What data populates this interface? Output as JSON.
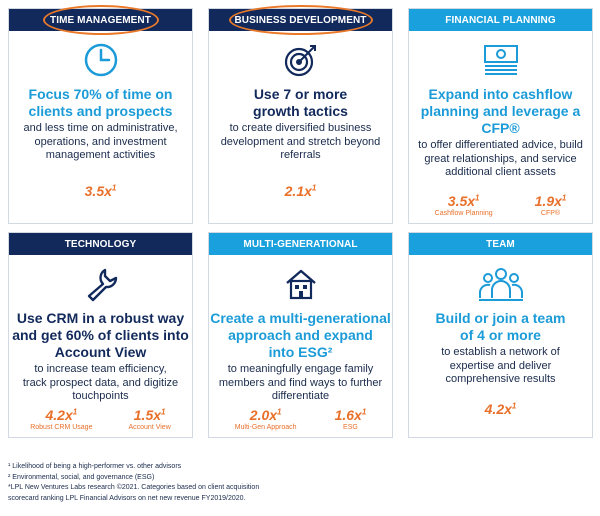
{
  "cards": [
    {
      "id": "time",
      "header": "TIME MANAGEMENT",
      "icon": "clock-icon",
      "headline": [
        "Focus 70% of time on",
        "clients and prospects"
      ],
      "body": [
        "and less time on administrative,",
        "operations, and investment",
        "management activities"
      ],
      "metrics": [
        {
          "value": "3.5x",
          "sup": "1",
          "label": ""
        }
      ]
    },
    {
      "id": "bizdev",
      "header": "BUSINESS DEVELOPMENT",
      "icon": "target-icon",
      "headline": [
        "Use 7 or more",
        "growth tactics"
      ],
      "body": [
        "to create diversified business",
        "development and stretch beyond",
        "referrals"
      ],
      "metrics": [
        {
          "value": "2.1x",
          "sup": "1",
          "label": ""
        }
      ]
    },
    {
      "id": "financial",
      "header": "FINANCIAL PLANNING",
      "icon": "cash-icon",
      "headline": [
        "Expand into cashflow",
        "planning and leverage a CFP®"
      ],
      "body": [
        "to offer differentiated advice, build",
        "great relationships, and service",
        "additional client assets"
      ],
      "metrics": [
        {
          "value": "3.5x",
          "sup": "1",
          "label": "Cashflow Planning"
        },
        {
          "value": "1.9x",
          "sup": "1",
          "label": "CFP®"
        }
      ]
    },
    {
      "id": "technology",
      "header": "TECHNOLOGY",
      "icon": "wrench-icon",
      "headline": [
        "Use CRM in a robust way",
        "and get 60% of clients into",
        "Account View"
      ],
      "body": [
        "to increase team efficiency,",
        "track prospect data, and digitize",
        "touchpoints"
      ],
      "metrics": [
        {
          "value": "4.2x",
          "sup": "1",
          "label": "Robust CRM Usage"
        },
        {
          "value": "1.5x",
          "sup": "1",
          "label": "Account View"
        }
      ]
    },
    {
      "id": "multigen",
      "header": "MULTI-GENERATIONAL",
      "icon": "house-icon",
      "headline": [
        "Create a multi-generational",
        "approach and expand",
        "into ESG²"
      ],
      "body": [
        "to meaningfully engage family",
        "members and find ways to further",
        "differentiate"
      ],
      "metrics": [
        {
          "value": "2.0x",
          "sup": "1",
          "label": "Multi-Gen Approach"
        },
        {
          "value": "1.6x",
          "sup": "1",
          "label": "ESG"
        }
      ]
    },
    {
      "id": "team",
      "header": "TEAM",
      "icon": "people-icon",
      "headline": [
        "Build or join a team",
        "of 4 or more"
      ],
      "body": [
        "to establish a network of",
        "expertise and deliver",
        "comprehensive results"
      ],
      "metrics": [
        {
          "value": "4.2x",
          "sup": "1",
          "label": ""
        }
      ]
    }
  ],
  "footnotes": [
    "¹ Likelihood of being a high-performer vs. other advisors",
    "² Environmental, social, and governance (ESG)",
    "*LPL New Ventures Labs research ©2021. Categories based on client acquisition",
    "scorecard ranking LPL Financial Advisors on net new revenue FY2019/2020."
  ],
  "colors": {
    "navy": "#12295b",
    "blue": "#1aa0dc",
    "orange": "#e8702a"
  }
}
